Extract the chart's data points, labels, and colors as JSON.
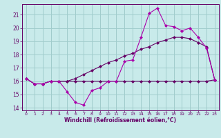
{
  "x": [
    0,
    1,
    2,
    3,
    4,
    5,
    6,
    7,
    8,
    9,
    10,
    11,
    12,
    13,
    14,
    15,
    16,
    17,
    18,
    19,
    20,
    21,
    22,
    23
  ],
  "line1": [
    16.2,
    15.8,
    15.8,
    16.0,
    16.0,
    15.2,
    14.4,
    14.2,
    15.3,
    15.5,
    16.0,
    16.0,
    17.5,
    17.6,
    19.3,
    21.1,
    21.5,
    20.2,
    20.1,
    19.8,
    20.0,
    19.3,
    18.5,
    16.1
  ],
  "line2": [
    16.2,
    15.8,
    15.8,
    16.0,
    16.0,
    16.0,
    16.0,
    16.0,
    16.0,
    16.0,
    16.0,
    16.0,
    16.0,
    16.0,
    16.0,
    16.0,
    16.0,
    16.0,
    16.0,
    16.0,
    16.0,
    16.0,
    16.0,
    16.1
  ],
  "line3": [
    16.2,
    15.8,
    15.8,
    16.0,
    16.0,
    16.0,
    16.2,
    16.5,
    16.8,
    17.1,
    17.4,
    17.6,
    17.9,
    18.1,
    18.4,
    18.6,
    18.9,
    19.1,
    19.3,
    19.3,
    19.2,
    18.9,
    18.6,
    16.1
  ],
  "color_main": "#aa00aa",
  "color_dark": "#660066",
  "marker": "D",
  "markersize": 2.5,
  "background": "#c8eaea",
  "grid_color": "#a0cccc",
  "xlabel": "Windchill (Refroidissement éolien,°C)",
  "xlim": [
    -0.5,
    23.5
  ],
  "ylim": [
    13.8,
    21.8
  ],
  "yticks": [
    14,
    15,
    16,
    17,
    18,
    19,
    20,
    21
  ],
  "xticks": [
    0,
    1,
    2,
    3,
    4,
    5,
    6,
    7,
    8,
    9,
    10,
    11,
    12,
    13,
    14,
    15,
    16,
    17,
    18,
    19,
    20,
    21,
    22,
    23
  ]
}
